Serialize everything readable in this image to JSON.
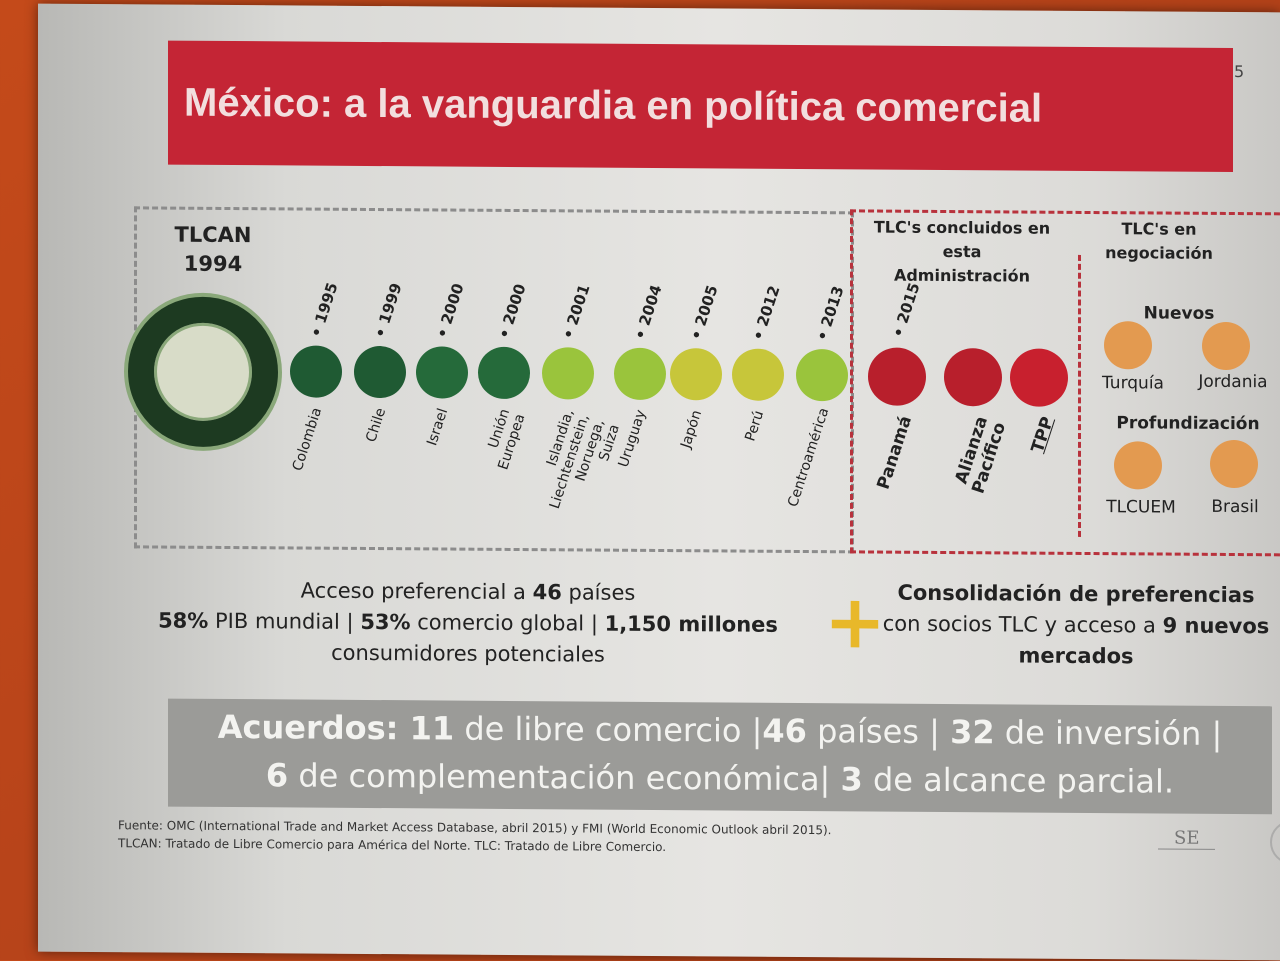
{
  "title": "México: a la vanguardia en política comercial",
  "page_number": "5",
  "tlcan": {
    "name": "TLCAN",
    "year": "1994"
  },
  "timeline": [
    {
      "year": "• 1995",
      "country": "Colombia",
      "color": "#1f5a33"
    },
    {
      "year": "• 1999",
      "country": "Chile",
      "color": "#1f5a33"
    },
    {
      "year": "• 2000",
      "country": "Israel",
      "color": "#256a3a"
    },
    {
      "year": "• 2000",
      "country": "Unión Europea",
      "color": "#256a3a"
    },
    {
      "year": "• 2001",
      "country": "Islandia, Liechtenstein, Noruega, Suiza",
      "color": "#9ac43c"
    },
    {
      "year": "• 2004",
      "country": "Uruguay",
      "color": "#9ac43c"
    },
    {
      "year": "• 2005",
      "country": "Japón",
      "color": "#c7c63a"
    },
    {
      "year": "• 2012",
      "country": "Perú",
      "color": "#c7c63a"
    },
    {
      "year": "• 2013",
      "country": "Centroamérica",
      "color": "#9ac43c"
    }
  ],
  "concluded": {
    "header": "TLC's concluidos en esta Administración",
    "items": [
      {
        "year": "• 2015",
        "country": "Panamá",
        "color": "#b81f2c"
      },
      {
        "year": "",
        "country": "Alianza Pacífico",
        "color": "#b81f2c"
      },
      {
        "year": "",
        "country": "TPP",
        "color": "#c8202e"
      }
    ]
  },
  "negotiation": {
    "header": "TLC's en negociación",
    "new_label": "Nuevos",
    "new_items": [
      "Turquía",
      "Jordania"
    ],
    "deepen_label": "Profundización",
    "deepen_items": [
      "TLCUEM",
      "Brasil"
    ],
    "color": "#e39a50"
  },
  "stats_left": {
    "line1_a": "Acceso preferencial a ",
    "line1_b": "46",
    "line1_c": " países",
    "line2_a": "58%",
    "line2_b": " PIB mundial |  ",
    "line2_c": "53%",
    "line2_d": " comercio global | ",
    "line2_e": "1,150 millones",
    "line3": "consumidores potenciales"
  },
  "stats_right": {
    "a": "Consolidación de preferencias",
    "b": " con socios TLC y acceso a ",
    "c": "9 nuevos mercados"
  },
  "agreements": {
    "l1_a": "Acuerdos: 11",
    "l1_b": " de libre comercio |",
    "l1_c": "46",
    "l1_d": " países | ",
    "l1_e": "32",
    "l1_f": " de inversión |",
    "l2_a": "6",
    "l2_b": " de complementación económica| ",
    "l2_c": "3",
    "l2_d": " de alcance parcial."
  },
  "footnotes": [
    "Fuente: OMC (International Trade and Market Access Database, abril 2015) y FMI (World Economic Outlook abril 2015).",
    "TLCAN: Tratado de Libre Comercio para América del Norte. TLC: Tratado de Libre Comercio."
  ],
  "logo_text": "SE"
}
